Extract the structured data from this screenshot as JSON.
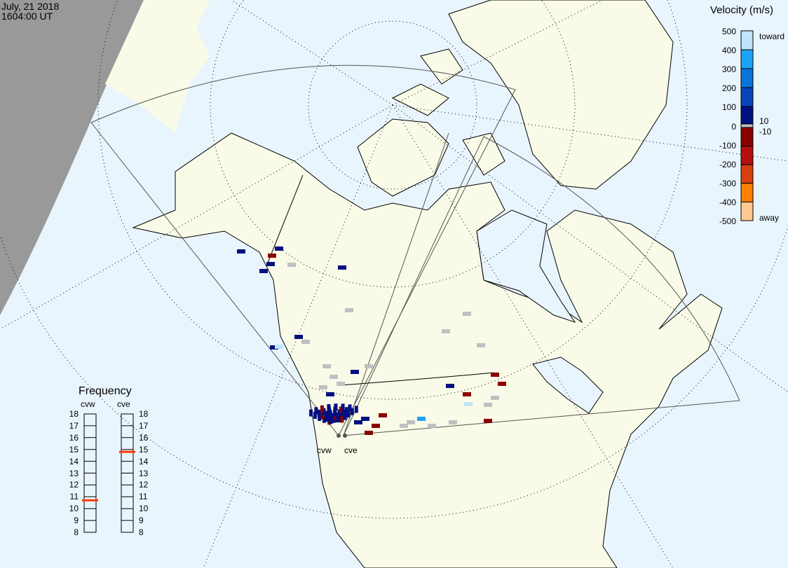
{
  "header": {
    "date": "July, 21 2018",
    "time": "1604:00 UT"
  },
  "colorbar": {
    "title": "Velocity (m/s)",
    "ticks": [
      "500",
      "400",
      "300",
      "200",
      "100",
      "0",
      "-100",
      "-200",
      "-300",
      "-400",
      "-500"
    ],
    "label_toward": "toward",
    "label_away": "away",
    "ground_scatter_limits": [
      "10",
      "-10"
    ],
    "colors": [
      "#bfe4fb",
      "#1ca3f8",
      "#0a74dd",
      "#0845b8",
      "#001080",
      "#8a0000",
      "#b40f0f",
      "#d64010",
      "#ff8000",
      "#ffc890"
    ],
    "ground_scatter_color": "#c0c0c0"
  },
  "frequency": {
    "title": "Frequency",
    "unit_ticks": [
      "18",
      "17",
      "16",
      "15",
      "14",
      "13",
      "12",
      "11",
      "10",
      "9",
      "8"
    ],
    "radars": [
      {
        "name": "cvw",
        "mhz": 10.7
      },
      {
        "name": "cve",
        "mhz": 14.8
      }
    ],
    "marker_color": "#ff3a00"
  },
  "map": {
    "radar_labels": [
      "cvw",
      "cve"
    ],
    "land_color": "#fafae8",
    "ocean_color": "#e9f5fd",
    "night_color": "#999999"
  }
}
